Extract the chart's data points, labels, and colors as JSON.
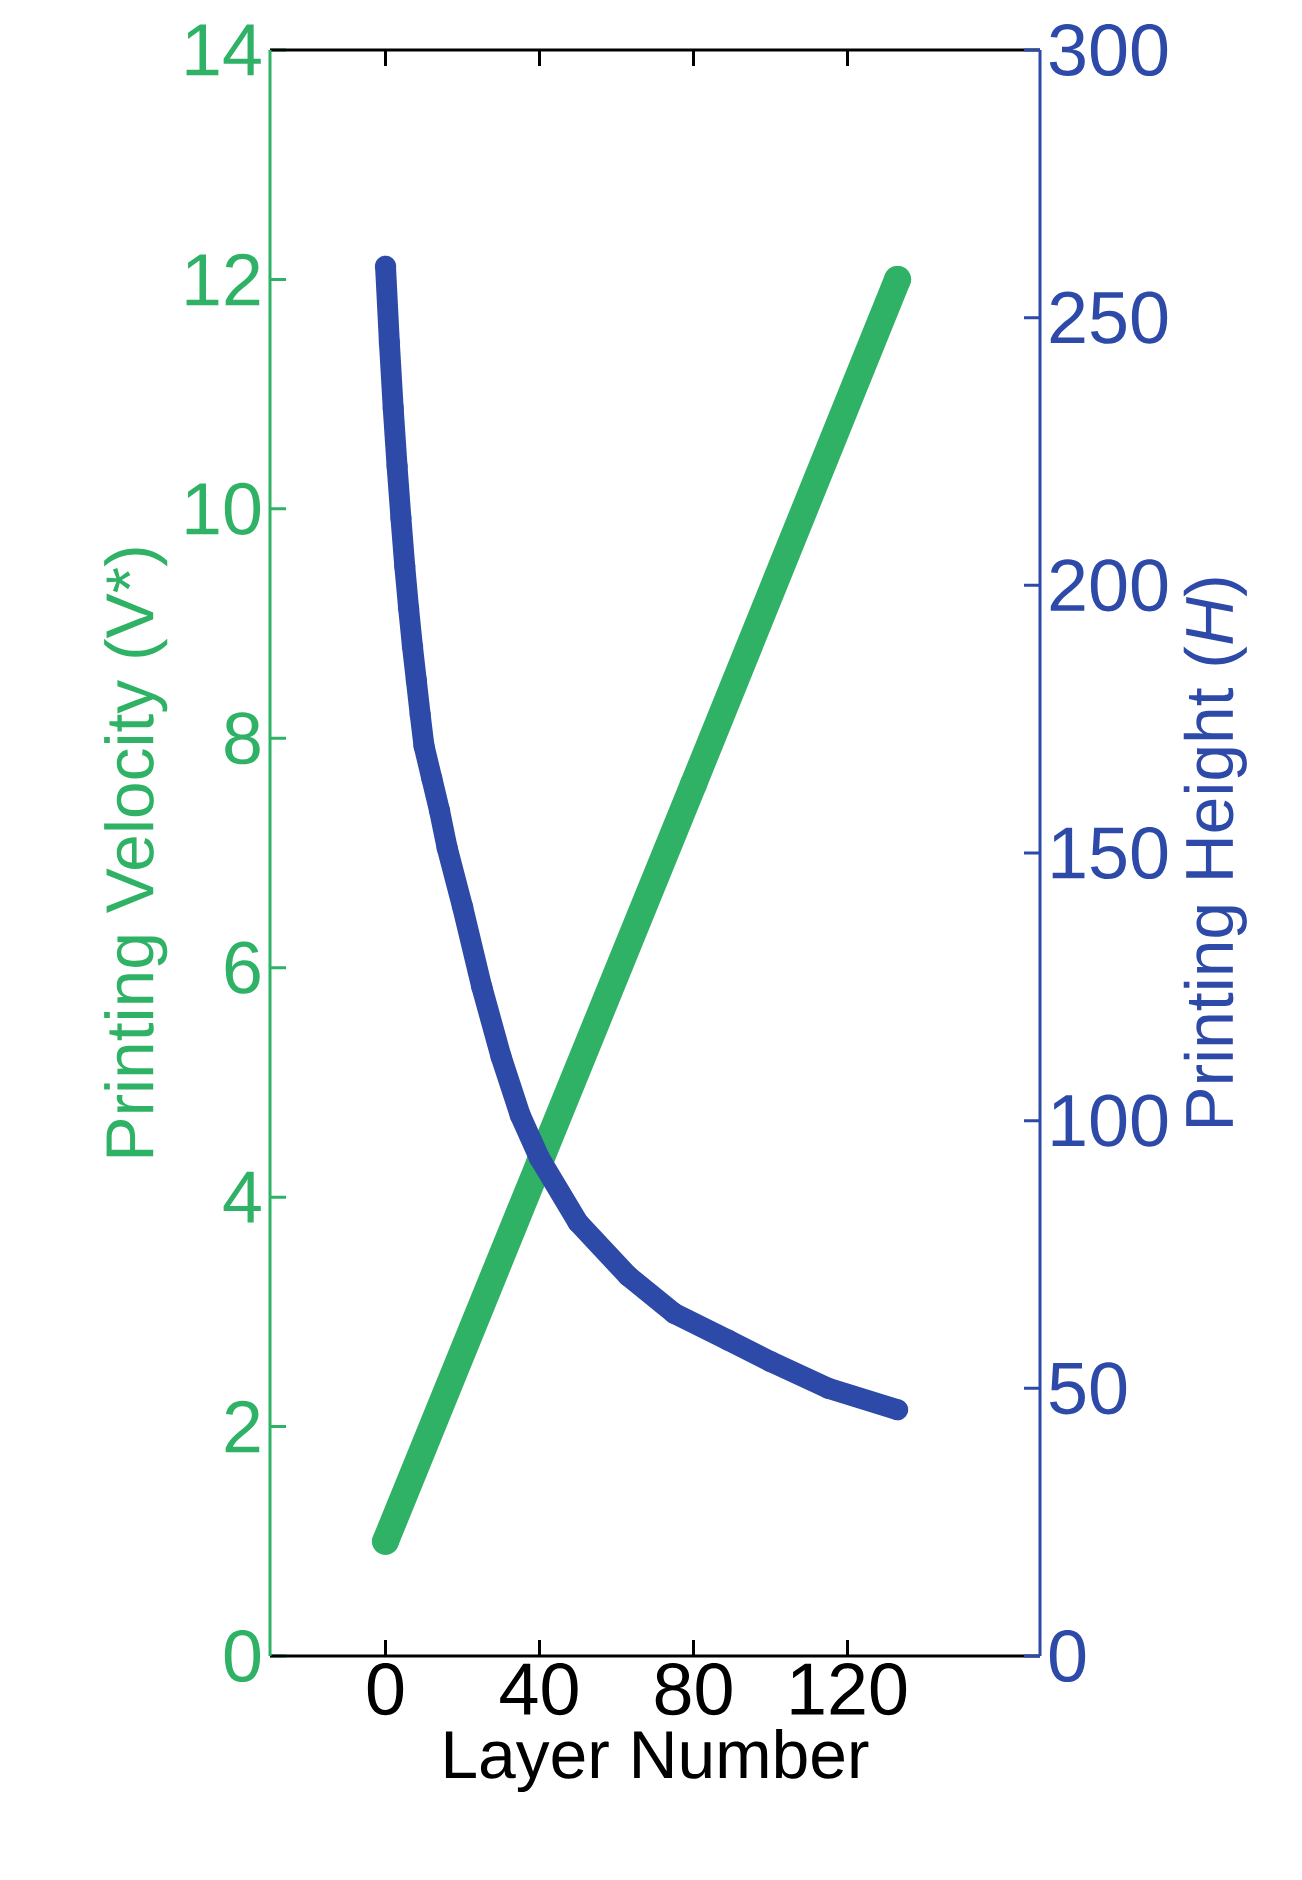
{
  "chart_data": {
    "type": "line",
    "xlabel": "Layer Number",
    "ylabel": "Printing Velocity (V*)",
    "y2label": "Printing Height (*H*)",
    "xlim": [
      -30,
      170
    ],
    "xticks": [
      0,
      40,
      80,
      120
    ],
    "ylim": [
      0,
      14
    ],
    "yticks": [
      0,
      2,
      4,
      6,
      8,
      10,
      12,
      14
    ],
    "y2lim": [
      0,
      300
    ],
    "y2ticks": [
      0,
      50,
      100,
      150,
      200,
      250,
      300
    ],
    "marker": "circle",
    "grid": false,
    "series": [
      {
        "name": null,
        "color": "#2fb265",
        "axis": "y",
        "x": [
          0,
          40,
          80,
          133
        ],
        "values": [
          1,
          4.3,
          7.6,
          12
        ]
      },
      {
        "name": null,
        "color": "#2e4aa8",
        "axis": "y2",
        "x": [
          0,
          1,
          2,
          3,
          4,
          5,
          6,
          7,
          8,
          9,
          10,
          12,
          14,
          16,
          20,
          25,
          30,
          35,
          40,
          50,
          63,
          75,
          89,
          100,
          115,
          133
        ],
        "values": [
          259.6,
          245.4,
          233.1,
          222.3,
          212.6,
          203.6,
          195.7,
          188.6,
          182.3,
          175.9,
          170,
          164,
          158,
          151,
          140,
          125,
          112,
          101,
          93,
          81,
          71,
          64,
          59,
          55,
          50,
          46
        ]
      }
    ]
  }
}
